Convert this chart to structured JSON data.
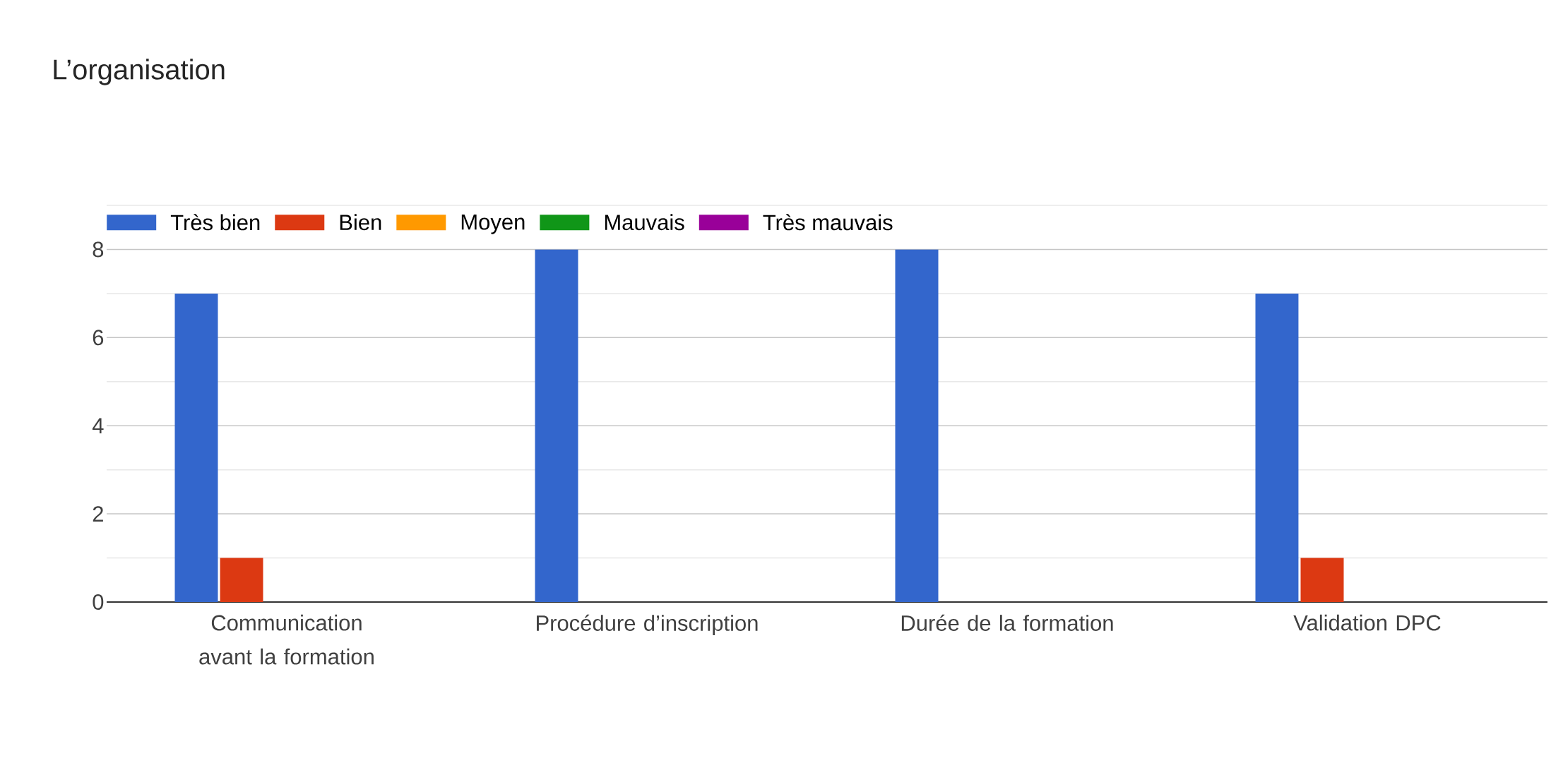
{
  "chart_data": {
    "type": "bar",
    "title": "L’organisation",
    "categories": [
      "Communication avant la formation",
      "Procédure d’inscription",
      "Durée de la formation",
      "Validation DPC"
    ],
    "series": [
      {
        "name": "Très bien",
        "color": "#3366cc",
        "values": [
          7,
          8,
          8,
          7
        ]
      },
      {
        "name": "Bien",
        "color": "#dc3912",
        "values": [
          1,
          0,
          0,
          1
        ]
      },
      {
        "name": "Moyen",
        "color": "#ff9900",
        "values": [
          0,
          0,
          0,
          0
        ]
      },
      {
        "name": "Mauvais",
        "color": "#109618",
        "values": [
          0,
          0,
          0,
          0
        ]
      },
      {
        "name": "Très mauvais",
        "color": "#990099",
        "values": [
          0,
          0,
          0,
          0
        ]
      }
    ],
    "ylim": [
      0,
      9
    ],
    "yticks": [
      0,
      2,
      4,
      6,
      8
    ],
    "grid": "y",
    "legend": "top left"
  }
}
